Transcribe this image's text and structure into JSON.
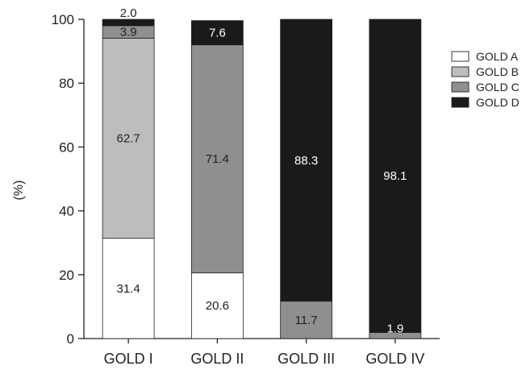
{
  "chart_data": {
    "type": "bar",
    "stacked": true,
    "categories": [
      "GOLD I",
      "GOLD II",
      "GOLD III",
      "GOLD IV"
    ],
    "series": [
      {
        "name": "GOLD A",
        "values": [
          31.4,
          20.6,
          0,
          0
        ],
        "labels": [
          "31.4",
          "20.6",
          "",
          ""
        ]
      },
      {
        "name": "GOLD B",
        "values": [
          62.7,
          0,
          0,
          0
        ],
        "labels": [
          "62.7",
          "",
          "",
          ""
        ]
      },
      {
        "name": "GOLD C",
        "values": [
          3.9,
          71.4,
          11.7,
          1.9
        ],
        "labels": [
          "3.9",
          "71.4",
          "11.7",
          "1.9"
        ]
      },
      {
        "name": "GOLD D",
        "values": [
          2.0,
          7.6,
          88.3,
          98.1
        ],
        "labels": [
          "2.0",
          "7.6",
          "88.3",
          "98.1"
        ]
      }
    ],
    "colors": [
      "#ffffff",
      "#bdbdbd",
      "#8f8f8f",
      "#1a1a1a"
    ],
    "ylabel": "(%)",
    "ylim": [
      0,
      100
    ],
    "yticks": [
      "0",
      "20",
      "40",
      "60",
      "80",
      "100"
    ],
    "legend_position": "right",
    "grid": false
  }
}
